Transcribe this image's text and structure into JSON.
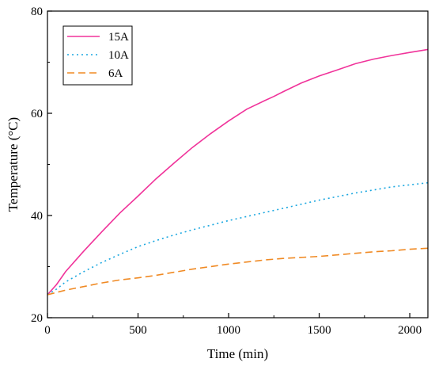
{
  "chart_data": {
    "type": "line",
    "title": "",
    "xlabel": "Time (min)",
    "ylabel": "Temperature (°C)",
    "xlim": [
      0,
      2100
    ],
    "ylim": [
      20,
      80
    ],
    "xticks": [
      0,
      500,
      1000,
      1500,
      2000
    ],
    "yticks": [
      20,
      40,
      60,
      80
    ],
    "grid": false,
    "legend_position": "top-left",
    "series": [
      {
        "name": "15A",
        "color": "#f0339a",
        "dash": "solid",
        "x": [
          0,
          50,
          100,
          200,
          300,
          400,
          500,
          600,
          700,
          800,
          900,
          1000,
          1100,
          1200,
          1250,
          1300,
          1400,
          1500,
          1600,
          1700,
          1800,
          1900,
          2000,
          2100
        ],
        "y": [
          24.5,
          26.5,
          29.0,
          33.0,
          36.8,
          40.5,
          43.8,
          47.2,
          50.3,
          53.3,
          56.0,
          58.5,
          60.8,
          62.5,
          63.3,
          64.2,
          65.9,
          67.3,
          68.5,
          69.7,
          70.6,
          71.3,
          71.9,
          72.5
        ]
      },
      {
        "name": "10A",
        "color": "#1aa7e0",
        "dash": "dot",
        "x": [
          0,
          50,
          100,
          200,
          300,
          400,
          500,
          600,
          700,
          800,
          900,
          1000,
          1100,
          1200,
          1300,
          1400,
          1500,
          1600,
          1700,
          1800,
          1900,
          2000,
          2100
        ],
        "y": [
          24.5,
          25.6,
          27.0,
          29.0,
          30.8,
          32.4,
          33.9,
          35.1,
          36.2,
          37.2,
          38.1,
          39.0,
          39.8,
          40.6,
          41.4,
          42.2,
          43.0,
          43.7,
          44.4,
          45.0,
          45.6,
          46.0,
          46.4
        ]
      },
      {
        "name": "6A",
        "color": "#f08a24",
        "dash": "dash",
        "x": [
          0,
          100,
          200,
          300,
          400,
          500,
          600,
          700,
          800,
          900,
          1000,
          1100,
          1200,
          1300,
          1400,
          1500,
          1600,
          1700,
          1800,
          1900,
          2000,
          2100
        ],
        "y": [
          24.5,
          25.4,
          26.1,
          26.8,
          27.4,
          27.8,
          28.3,
          28.9,
          29.5,
          30.0,
          30.5,
          30.9,
          31.3,
          31.6,
          31.8,
          32.0,
          32.3,
          32.6,
          32.9,
          33.1,
          33.4,
          33.6
        ]
      }
    ]
  }
}
